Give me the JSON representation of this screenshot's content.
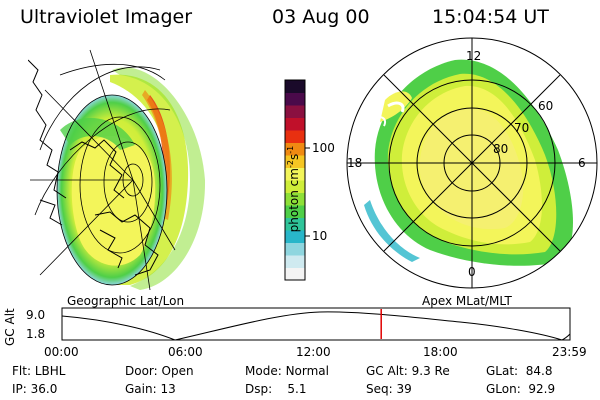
{
  "header": {
    "instrument": "Ultraviolet Imager",
    "date": "03 Aug 00",
    "time": "15:04:54 UT"
  },
  "left_panel": {
    "caption": "Geographic Lat/Lon"
  },
  "colorbar": {
    "unit_label": "photon cm",
    "unit_sup1": "-2",
    "unit_mid": "s",
    "unit_sup2": "-1",
    "ticks": [
      "100",
      "10"
    ],
    "colors": [
      "#f4f4f4",
      "#cfeaf0",
      "#8fd6df",
      "#29b6c9",
      "#2fc59a",
      "#4fcf48",
      "#8ee038",
      "#cfee3a",
      "#f3f55a",
      "#f5c623",
      "#f08a12",
      "#e83010",
      "#c0102a",
      "#8a1040",
      "#4a0a4a",
      "#1a0a2a"
    ],
    "scale": "log"
  },
  "right_panel": {
    "caption": "Apex MLat/MLT",
    "mlt_labels": {
      "top": "12",
      "left": "18",
      "right": "6",
      "bottom": "0"
    },
    "lat_labels": [
      "60",
      "70",
      "80"
    ]
  },
  "timeline": {
    "axis_label": "GC Alt",
    "y_ticks": [
      "9.0",
      "1.8"
    ],
    "x_ticks": [
      "00:00",
      "06:00",
      "12:00",
      "18:00",
      "23:59"
    ],
    "marker_time": "15:04:54",
    "marker_color": "#e00000"
  },
  "status": {
    "flt_label": "Flt:",
    "flt_value": "LBHL",
    "ip_label": "IP:",
    "ip_value": "36.0",
    "door_label": "Door:",
    "door_value": "Open",
    "gain_label": "Gain:",
    "gain_value": "13",
    "mode_label": "Mode:",
    "mode_value": "Normal",
    "dsp_label": "Dsp:",
    "dsp_value": "5.1",
    "gcalt_label": "GC Alt:",
    "gcalt_value": "9.3 Re",
    "seq_label": "Seq:",
    "seq_value": "39",
    "glat_label": "GLat:",
    "glat_value": "84.8",
    "glon_label": "GLon:",
    "glon_value": "92.9"
  }
}
